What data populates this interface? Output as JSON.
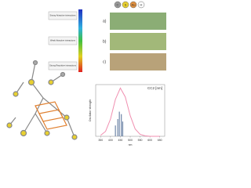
{
  "legend": {
    "items": [
      "C",
      "S",
      "Au",
      "H"
    ]
  },
  "colorbar": {
    "labels": [
      "Strong Attractive interactions",
      "Weak Attractive interactions",
      "Strong Repulsive interactions"
    ]
  },
  "panels": {
    "labels": [
      "a)",
      "b)",
      "c)"
    ]
  },
  "chart_data": {
    "type": "line",
    "title": "CC2 [nm]",
    "x_label": "nm",
    "y_label": "Oscillator strength",
    "x": [
      350,
      375,
      400,
      425,
      450,
      475,
      500,
      525,
      550,
      575,
      600,
      625,
      650
    ],
    "series": [
      {
        "name": "spectrum",
        "color": "#f08fb0",
        "values": [
          0.02,
          0.1,
          0.35,
          0.75,
          0.98,
          0.8,
          0.42,
          0.15,
          0.04,
          0.01,
          0,
          0,
          0
        ]
      },
      {
        "name": "transitions",
        "type": "stick",
        "color": "#6f86a8",
        "x": [
          425,
          437,
          445,
          455,
          462
        ],
        "values": [
          0.22,
          0.35,
          0.5,
          0.45,
          0.3
        ]
      }
    ],
    "xlim": [
      325,
      675
    ],
    "ylim": [
      0,
      1.05
    ],
    "xticks": [
      350,
      400,
      450,
      500,
      550,
      600,
      650
    ]
  }
}
